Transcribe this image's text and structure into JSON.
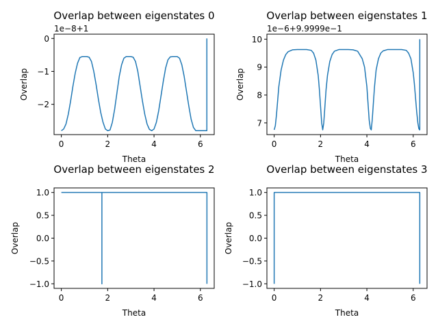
{
  "chart_data": [
    {
      "type": "line",
      "title": "Overlap between eigenstates 0",
      "xlabel": "Theta",
      "ylabel": "Overlap",
      "offset_text": "1e−8+1",
      "xlim": [
        -0.314,
        6.597
      ],
      "ylim": [
        -2.92,
        0.13
      ],
      "xticks": [
        0,
        2,
        4,
        6
      ],
      "xtick_labels": [
        "0",
        "2",
        "4",
        "6"
      ],
      "yticks": [
        -2,
        -1,
        0
      ],
      "ytick_labels": [
        "−2",
        "−1",
        "0"
      ],
      "color": "#1f77b4",
      "series": [
        {
          "x": [
            0,
            0.1,
            0.2,
            0.3,
            0.4,
            0.5,
            0.6,
            0.7,
            0.8,
            0.9,
            1.0,
            1.1,
            1.2,
            1.3,
            1.4,
            1.5,
            1.6,
            1.7,
            1.8,
            1.9,
            2.0,
            2.1,
            2.2,
            2.3,
            2.4,
            2.5,
            2.6,
            2.7,
            2.8,
            2.9,
            3.0,
            3.1,
            3.2,
            3.3,
            3.4,
            3.5,
            3.6,
            3.7,
            3.8,
            3.9,
            4.0,
            4.1,
            4.2,
            4.3,
            4.4,
            4.5,
            4.6,
            4.7,
            4.8,
            4.9,
            5.0,
            5.1,
            5.2,
            5.3,
            5.4,
            5.5,
            5.6,
            5.7,
            5.8,
            5.9,
            6.0,
            6.1,
            6.2,
            6.28,
            6.28
          ],
          "y": [
            -2.8,
            -2.75,
            -2.6,
            -2.3,
            -1.9,
            -1.45,
            -1.05,
            -0.75,
            -0.58,
            -0.55,
            -0.55,
            -0.55,
            -0.57,
            -0.7,
            -1.0,
            -1.4,
            -1.85,
            -2.25,
            -2.55,
            -2.75,
            -2.8,
            -2.78,
            -2.55,
            -2.15,
            -1.65,
            -1.15,
            -0.8,
            -0.6,
            -0.55,
            -0.55,
            -0.55,
            -0.57,
            -0.7,
            -1.0,
            -1.45,
            -1.9,
            -2.3,
            -2.6,
            -2.76,
            -2.8,
            -2.75,
            -2.55,
            -2.2,
            -1.75,
            -1.3,
            -0.9,
            -0.65,
            -0.56,
            -0.55,
            -0.55,
            -0.55,
            -0.6,
            -0.8,
            -1.15,
            -1.6,
            -2.05,
            -2.45,
            -2.7,
            -2.8,
            -2.8,
            -2.8,
            -2.8,
            -2.8,
            -2.8,
            0.0
          ]
        }
      ]
    },
    {
      "type": "line",
      "title": "Overlap between eigenstates 1",
      "xlabel": "Theta",
      "ylabel": "Overlap",
      "offset_text": "1e−6+9.9999e−1",
      "xlim": [
        -0.314,
        6.597
      ],
      "ylim": [
        6.58,
        10.18
      ],
      "xticks": [
        0,
        2,
        4,
        6
      ],
      "xtick_labels": [
        "0",
        "2",
        "4",
        "6"
      ],
      "yticks": [
        7,
        8,
        9,
        10
      ],
      "ytick_labels": [
        "7",
        "8",
        "9",
        "10"
      ],
      "color": "#1f77b4",
      "series": [
        {
          "x": [
            0,
            0.05,
            0.1,
            0.15,
            0.2,
            0.3,
            0.4,
            0.5,
            0.6,
            0.8,
            1.0,
            1.2,
            1.4,
            1.6,
            1.7,
            1.8,
            1.9,
            1.95,
            2.0,
            2.05,
            2.094,
            2.14,
            2.19,
            2.24,
            2.3,
            2.4,
            2.5,
            2.6,
            2.8,
            3.0,
            3.2,
            3.4,
            3.6,
            3.8,
            3.9,
            4.0,
            4.05,
            4.1,
            4.15,
            4.189,
            4.23,
            4.28,
            4.33,
            4.4,
            4.5,
            4.6,
            4.7,
            4.9,
            5.1,
            5.3,
            5.5,
            5.7,
            5.8,
            5.9,
            6.0,
            6.05,
            6.1,
            6.15,
            6.2,
            6.24,
            6.27,
            6.283,
            6.283
          ],
          "y": [
            6.75,
            6.9,
            7.3,
            7.8,
            8.3,
            8.9,
            9.25,
            9.45,
            9.55,
            9.62,
            9.63,
            9.63,
            9.63,
            9.6,
            9.5,
            9.25,
            8.7,
            8.2,
            7.6,
            7.0,
            6.75,
            7.0,
            7.6,
            8.2,
            8.7,
            9.2,
            9.45,
            9.57,
            9.63,
            9.63,
            9.63,
            9.62,
            9.57,
            9.3,
            9.0,
            8.3,
            7.7,
            7.1,
            6.8,
            6.75,
            7.1,
            7.7,
            8.3,
            8.9,
            9.3,
            9.5,
            9.58,
            9.63,
            9.63,
            9.63,
            9.63,
            9.6,
            9.5,
            9.3,
            8.8,
            8.4,
            7.9,
            7.4,
            7.0,
            6.8,
            6.75,
            6.75,
            10.0
          ]
        }
      ]
    },
    {
      "type": "line",
      "title": "Overlap between eigenstates 2",
      "xlabel": "Theta",
      "ylabel": "Overlap",
      "offset_text": "",
      "xlim": [
        -0.314,
        6.597
      ],
      "ylim": [
        -1.1,
        1.1
      ],
      "xticks": [
        0,
        2,
        4,
        6
      ],
      "xtick_labels": [
        "0",
        "2",
        "4",
        "6"
      ],
      "yticks": [
        -1.0,
        -0.5,
        0.0,
        0.5,
        1.0
      ],
      "ytick_labels": [
        "−1.0",
        "−0.5",
        "0.0",
        "0.5",
        "1.0"
      ],
      "color": "#1f77b4",
      "series": [
        {
          "x": [
            0,
            1.75,
            1.75,
            1.75,
            6.283,
            6.283
          ],
          "y": [
            1.0,
            1.0,
            -1.0,
            1.0,
            1.0,
            -1.0
          ]
        }
      ]
    },
    {
      "type": "line",
      "title": "Overlap between eigenstates 3",
      "xlabel": "Theta",
      "ylabel": "Overlap",
      "offset_text": "",
      "xlim": [
        -0.314,
        6.597
      ],
      "ylim": [
        -1.1,
        1.1
      ],
      "xticks": [
        0,
        2,
        4,
        6
      ],
      "xtick_labels": [
        "0",
        "2",
        "4",
        "6"
      ],
      "yticks": [
        -1.0,
        -0.5,
        0.0,
        0.5,
        1.0
      ],
      "ytick_labels": [
        "−1.0",
        "−0.5",
        "0.0",
        "0.5",
        "1.0"
      ],
      "color": "#1f77b4",
      "series": [
        {
          "x": [
            0,
            0,
            6.283,
            6.283
          ],
          "y": [
            -1.0,
            1.0,
            1.0,
            -1.0
          ]
        }
      ]
    }
  ]
}
